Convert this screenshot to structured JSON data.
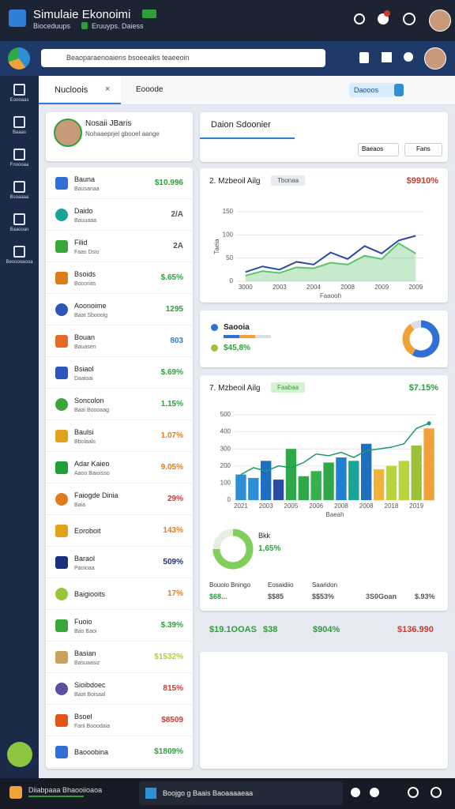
{
  "header": {
    "title": "Simulaie Ekonoimi",
    "subtitle": "Bioceduups",
    "status": "Eruuyps. Daiess"
  },
  "search": {
    "placeholder": "Beaoparaenoaiens bsoeeaiks teaeeoin"
  },
  "sidebar": [
    "Eoooaas",
    "Baaas",
    "Fnoooaa",
    "Bsoaaaa",
    "Baaooan",
    "Beooooaooa"
  ],
  "tabs": [
    "Nucloois",
    "Eooode"
  ],
  "tab_button": "Daooos",
  "profile": {
    "name": "Nosaii JBaris",
    "role": "Nohaaeprjel gbooel aange"
  },
  "list": [
    {
      "name": "Bauna",
      "sub": "Bausanaa",
      "value": "$10.996",
      "color": "#2e9e3a",
      "icon_color": "#2f6fd6"
    },
    {
      "name": "Daido",
      "sub": "Bauuaaa",
      "value": "2/A",
      "color": "#555555",
      "icon_color": "#1aa39a"
    },
    {
      "name": "Filid",
      "sub": "Faas Dsio",
      "value": "2A",
      "color": "#555555",
      "icon_color": "#3aa53a"
    },
    {
      "name": "Bsoids",
      "sub": "Bocorias",
      "value": "$.65%",
      "color": "#2e9e3a",
      "icon_color": "#e07b1a"
    },
    {
      "name": "Aoonoime",
      "sub": "Baat Sboooig",
      "value": "1295",
      "color": "#2e9e3a",
      "icon_color": "#2c55b8"
    },
    {
      "name": "Bouan",
      "sub": "Bauasen",
      "value": "803",
      "color": "#2a7fd0",
      "icon_color": "#e56a2a"
    },
    {
      "name": "Bsiaol",
      "sub": "Daaioai",
      "value": "$.69%",
      "color": "#2e9e3a",
      "icon_color": "#2c55b8"
    },
    {
      "name": "Soncolon",
      "sub": "Baai Boooaag",
      "value": "1.15%",
      "color": "#2e9e3a",
      "icon_color": "#3aa53a"
    },
    {
      "name": "Baulsi",
      "sub": "Bbolaals",
      "value": "1.07%",
      "color": "#e07b1a",
      "icon_color": "#e0a21a"
    },
    {
      "name": "Adar Kaieo",
      "sub": "Aaoo Baioisso",
      "value": "9.05%",
      "color": "#e07b1a",
      "icon_color": "#1f9e3a"
    },
    {
      "name": "Faiogde Dinia",
      "sub": "Baia",
      "value": "29%",
      "color": "#d0392b",
      "icon_color": "#e07b1a"
    },
    {
      "name": "Eoroboit",
      "sub": null,
      "value": "143%",
      "color": "#e07b1a",
      "icon_color": "#e0a21a"
    },
    {
      "name": "Baraol",
      "sub": "Paoioaa",
      "value": "509%",
      "color": "#1c2f7a",
      "icon_color": "#1c2f7a"
    },
    {
      "name": "Baigiooits",
      "sub": null,
      "value": "17%",
      "color": "#e07b1a",
      "icon_color": "#9cc23a"
    },
    {
      "name": "Fuoio",
      "sub": "Bao Baoi",
      "value": "$.39%",
      "color": "#2e9e3a",
      "icon_color": "#3aa53a"
    },
    {
      "name": "Basian",
      "sub": "Basuaasiz",
      "value": "$1532%",
      "color": "#b7cc3a",
      "icon_color": "#c9a25a"
    },
    {
      "name": "Sioibdoec",
      "sub": "Baat Boisaal",
      "value": "815%",
      "color": "#d0392b",
      "icon_color": "#5a4fa0"
    },
    {
      "name": "Bsoel",
      "sub": "Fanl Booodaia",
      "value": "$8509",
      "color": "#d0392b",
      "icon_color": "#e0561a"
    },
    {
      "name": "Baooobina",
      "sub": null,
      "value": "$1809%",
      "color": "#2e9e3a",
      "icon_color": "#2f6fd6"
    }
  ],
  "panel": {
    "title": "Daion Sdoonier",
    "buttons": [
      "Baeaos",
      "Fans"
    ]
  },
  "line_chart": {
    "type": "line",
    "title": "2. Mzbeoil Ailg",
    "tag": "Tbonaa",
    "headline": "$9910%",
    "x_label": "Faaooh",
    "y_label": "Taeia",
    "categories": [
      "3000",
      null,
      "2003",
      null,
      "2004",
      null,
      "2008",
      null,
      "2009",
      null,
      "2009"
    ],
    "series": [
      {
        "color": "#2c4aa0",
        "values": [
          20,
          32,
          25,
          42,
          36,
          62,
          48,
          76,
          60,
          88,
          98
        ]
      },
      {
        "color": "#5cc46a",
        "values": [
          12,
          22,
          18,
          30,
          28,
          40,
          36,
          55,
          48,
          82,
          60
        ],
        "area": true
      }
    ],
    "ylim": [
      0,
      150
    ],
    "yticks": [
      0,
      50,
      100,
      150
    ],
    "grid": true
  },
  "donut_card": {
    "type": "pie",
    "legend": [
      "Saooia",
      "$45,8%"
    ],
    "legend_colors": [
      "#2f6fd6",
      "#9cc23a"
    ],
    "values": [
      58,
      32,
      10
    ],
    "colors": [
      "#2f6fd6",
      "#f0a23a",
      "#d9dee6"
    ]
  },
  "bar_chart": {
    "type": "bar",
    "title": "7. Mzbeoil Ailg",
    "tag": "Faabaa",
    "headline": "$7.15%",
    "x_label": "Baeah",
    "categories": [
      "2021",
      null,
      "2003",
      null,
      "2005",
      null,
      "2006",
      null,
      "2008",
      null,
      "2008",
      null,
      "2018",
      null,
      "2019",
      null
    ],
    "series": [
      {
        "kind": "bar",
        "colors": [
          "#2f8fd6",
          "#2f8fd6",
          "#1f6fc0",
          "#2c4aa0",
          "#2ea84a",
          "#2ea84a",
          "#35b04a",
          "#2ea84a",
          "#1f7fd0",
          "#1aa39a",
          "#1f6fc0",
          "#f0b23a",
          "#b7d43a",
          "#b7d43a",
          "#9cc23a",
          "#f0a23a"
        ],
        "values": [
          150,
          130,
          230,
          120,
          300,
          140,
          170,
          220,
          250,
          230,
          330,
          180,
          200,
          230,
          320,
          420
        ]
      },
      {
        "kind": "line",
        "color": "#1a9a6a",
        "values": [
          150,
          190,
          170,
          200,
          190,
          220,
          270,
          260,
          280,
          250,
          290,
          300,
          310,
          330,
          420,
          450
        ]
      }
    ],
    "ylim": [
      0,
      500
    ],
    "yticks": [
      0,
      100,
      200,
      300,
      400,
      500
    ],
    "grid": true
  },
  "summary": {
    "label": "Bkk",
    "value": "1,65%",
    "values": [
      75,
      25
    ],
    "colors": [
      "#7fcf5a",
      "#e3efe0"
    ]
  },
  "stats": {
    "labels": [
      "Bouoio Bningo",
      "Eosaidiio",
      "Saaridon"
    ],
    "values": [
      "$68...",
      "$$85",
      "$$53%",
      "3S0Goan",
      "$.93%"
    ],
    "totals": [
      {
        "text": "$19.1OOAS",
        "color": "#2e9e3a"
      },
      {
        "text": "$38",
        "color": "#2e9e3a"
      },
      {
        "text": "$904%",
        "color": "#2e9e3a"
      },
      {
        "text": "$136.990",
        "color": "#d0392b"
      }
    ]
  },
  "taskbar": {
    "start": "Diiabpaaa Bhaooiioaoa",
    "task": "Boojgo g Baais Baoaaaaeaa"
  }
}
